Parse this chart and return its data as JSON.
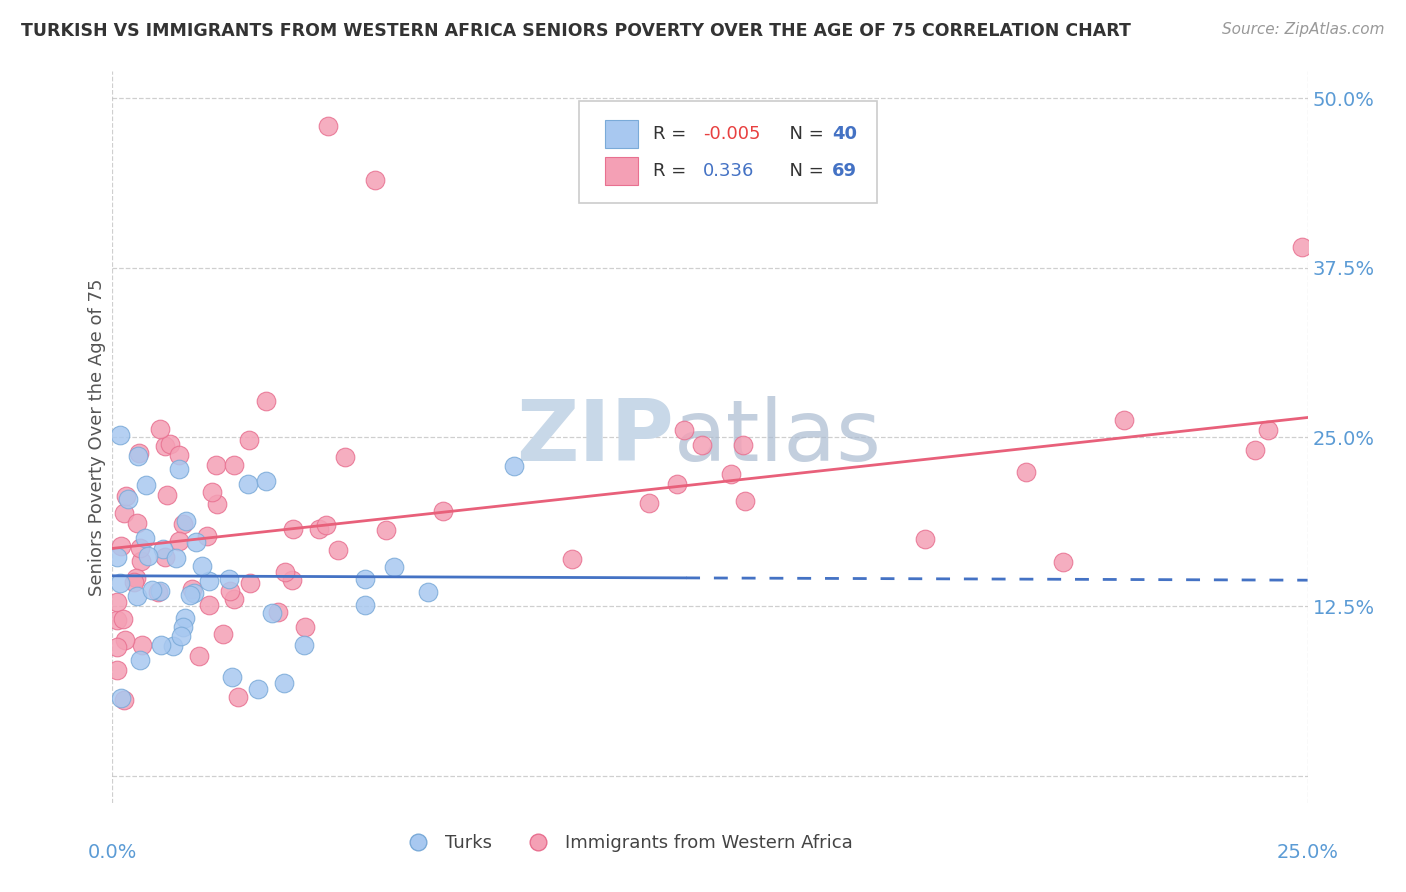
{
  "title": "TURKISH VS IMMIGRANTS FROM WESTERN AFRICA SENIORS POVERTY OVER THE AGE OF 75 CORRELATION CHART",
  "source": "Source: ZipAtlas.com",
  "ylabel": "Seniors Poverty Over the Age of 75",
  "xmin": 0.0,
  "xmax": 0.25,
  "ymin": -0.02,
  "ymax": 0.52,
  "ytick_vals": [
    0.0,
    0.125,
    0.25,
    0.375,
    0.5
  ],
  "ytick_labels": [
    "",
    "12.5%",
    "25.0%",
    "37.5%",
    "50.0%"
  ],
  "xtick_vals": [
    0.0,
    0.25
  ],
  "xtick_labels": [
    "0.0%",
    "25.0%"
  ],
  "blue_color": "#A8C8F0",
  "pink_color": "#F4A0B5",
  "blue_edge_color": "#7AAAD8",
  "pink_edge_color": "#E87090",
  "blue_line_color": "#4472C4",
  "pink_line_color": "#E8607A",
  "legend_r_blue": "-0.005",
  "legend_n_blue": "40",
  "legend_r_pink": "0.336",
  "legend_n_pink": "69",
  "bg_color": "#FFFFFF",
  "grid_color": "#BBBBBB",
  "title_color": "#333333",
  "axis_label_color": "#5B9BD5",
  "watermark_color": "#C8D8E8"
}
